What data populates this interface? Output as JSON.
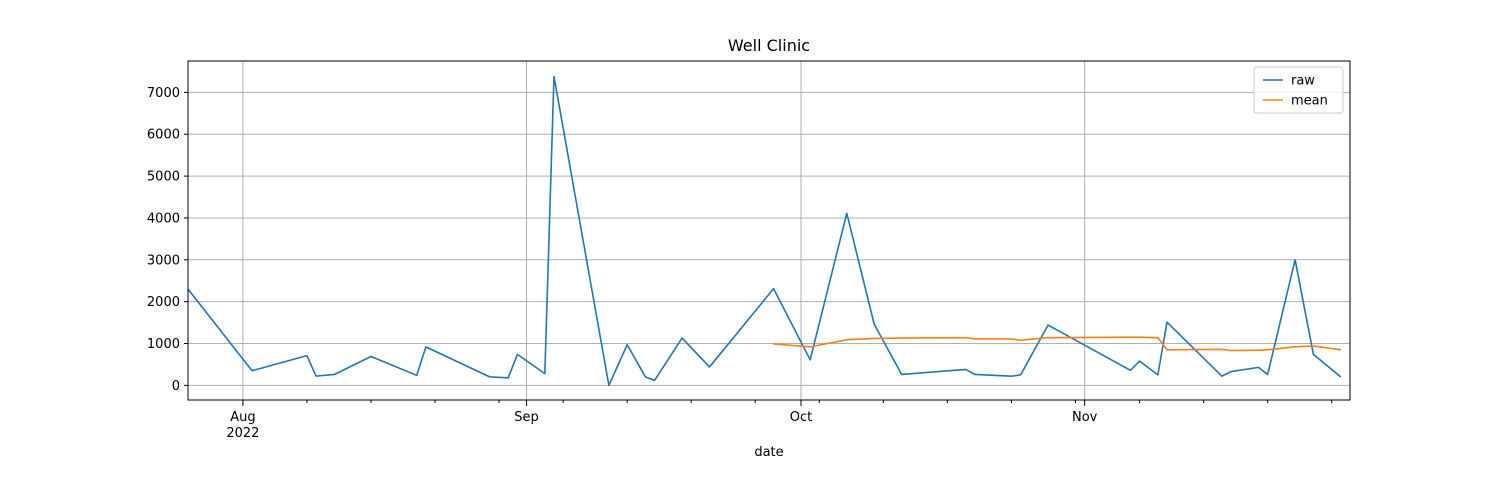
{
  "chart_data": {
    "type": "line",
    "title": "Well Clinic",
    "xlabel": "date",
    "ylabel": "",
    "xlim": [
      "2022-07-26",
      "2022-11-30"
    ],
    "ylim": [
      -350,
      7750
    ],
    "grid": true,
    "legend_position": "top-right",
    "x_ticks_major": [
      {
        "date": "2022-08-01",
        "label": "Aug",
        "sublabel": "2022"
      },
      {
        "date": "2022-09-01",
        "label": "Sep",
        "sublabel": ""
      },
      {
        "date": "2022-10-01",
        "label": "Oct",
        "sublabel": ""
      },
      {
        "date": "2022-11-01",
        "label": "Nov",
        "sublabel": ""
      }
    ],
    "x_ticks_minor": [
      "2022-08-08",
      "2022-08-15",
      "2022-08-22",
      "2022-08-29",
      "2022-09-05",
      "2022-09-12",
      "2022-09-19",
      "2022-09-26",
      "2022-10-03",
      "2022-10-10",
      "2022-10-17",
      "2022-10-24",
      "2022-10-31",
      "2022-11-07",
      "2022-11-14",
      "2022-11-21",
      "2022-11-28"
    ],
    "y_ticks": [
      0,
      1000,
      2000,
      3000,
      4000,
      5000,
      6000,
      7000
    ],
    "series": [
      {
        "name": "raw",
        "color": "#1f77b4",
        "points": [
          [
            "2022-07-26",
            2300
          ],
          [
            "2022-08-02",
            350
          ],
          [
            "2022-08-08",
            710
          ],
          [
            "2022-08-09",
            220
          ],
          [
            "2022-08-11",
            260
          ],
          [
            "2022-08-15",
            690
          ],
          [
            "2022-08-20",
            240
          ],
          [
            "2022-08-21",
            920
          ],
          [
            "2022-08-28",
            200
          ],
          [
            "2022-08-30",
            180
          ],
          [
            "2022-08-31",
            740
          ],
          [
            "2022-09-03",
            280
          ],
          [
            "2022-09-04",
            7380
          ],
          [
            "2022-09-10",
            0
          ],
          [
            "2022-09-12",
            970
          ],
          [
            "2022-09-14",
            200
          ],
          [
            "2022-09-15",
            120
          ],
          [
            "2022-09-18",
            1130
          ],
          [
            "2022-09-21",
            440
          ],
          [
            "2022-09-28",
            2310
          ],
          [
            "2022-10-02",
            610
          ],
          [
            "2022-10-06",
            4110
          ],
          [
            "2022-10-09",
            1460
          ],
          [
            "2022-10-12",
            260
          ],
          [
            "2022-10-19",
            380
          ],
          [
            "2022-10-20",
            260
          ],
          [
            "2022-10-24",
            220
          ],
          [
            "2022-10-25",
            250
          ],
          [
            "2022-10-28",
            1440
          ],
          [
            "2022-11-06",
            360
          ],
          [
            "2022-11-07",
            580
          ],
          [
            "2022-11-09",
            250
          ],
          [
            "2022-11-10",
            1510
          ],
          [
            "2022-11-16",
            220
          ],
          [
            "2022-11-17",
            330
          ],
          [
            "2022-11-20",
            430
          ],
          [
            "2022-11-21",
            260
          ],
          [
            "2022-11-24",
            3000
          ],
          [
            "2022-11-26",
            740
          ],
          [
            "2022-11-29",
            200
          ]
        ]
      },
      {
        "name": "mean",
        "color": "#ff7f0e",
        "points": [
          [
            "2022-09-28",
            990
          ],
          [
            "2022-10-02",
            920
          ],
          [
            "2022-10-06",
            1090
          ],
          [
            "2022-10-09",
            1120
          ],
          [
            "2022-10-12",
            1130
          ],
          [
            "2022-10-19",
            1140
          ],
          [
            "2022-10-20",
            1110
          ],
          [
            "2022-10-24",
            1110
          ],
          [
            "2022-10-25",
            1080
          ],
          [
            "2022-10-28",
            1140
          ],
          [
            "2022-11-06",
            1150
          ],
          [
            "2022-11-07",
            1150
          ],
          [
            "2022-11-09",
            1140
          ],
          [
            "2022-11-10",
            850
          ],
          [
            "2022-11-16",
            860
          ],
          [
            "2022-11-17",
            830
          ],
          [
            "2022-11-20",
            840
          ],
          [
            "2022-11-21",
            850
          ],
          [
            "2022-11-24",
            920
          ],
          [
            "2022-11-26",
            940
          ],
          [
            "2022-11-29",
            850
          ]
        ]
      }
    ]
  }
}
